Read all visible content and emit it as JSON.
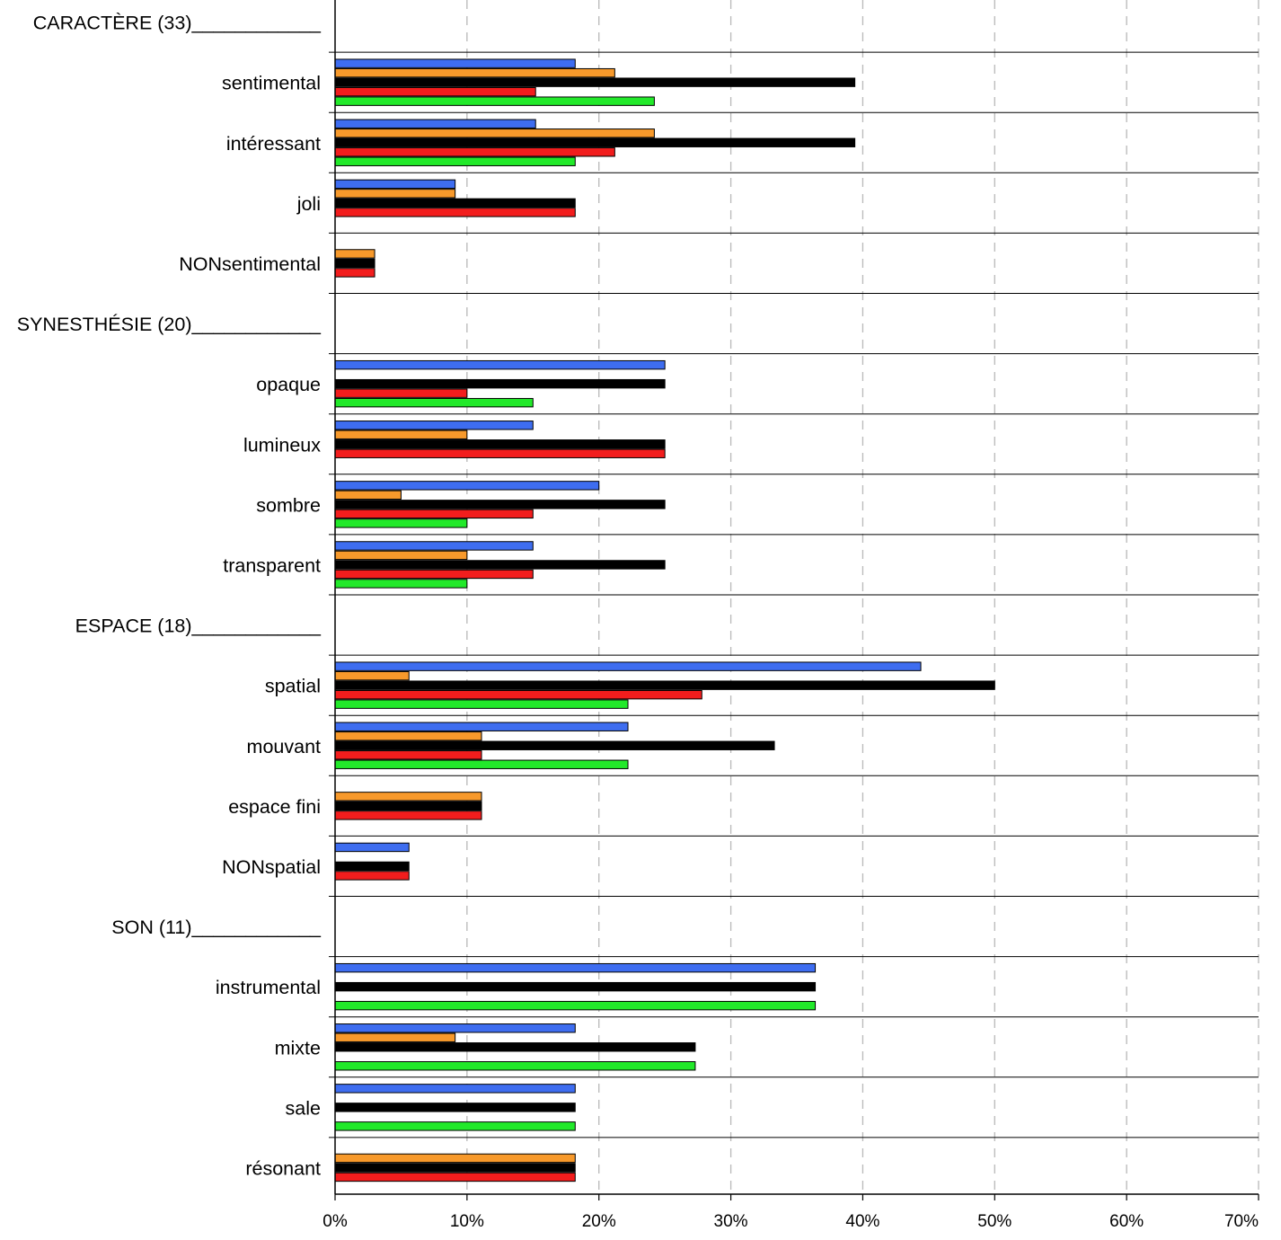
{
  "chart_data": {
    "type": "bar",
    "orientation": "horizontal",
    "title": "",
    "xlabel": "",
    "ylabel": "",
    "xlim": [
      0,
      70
    ],
    "x_unit": "%",
    "x_ticks": [
      0,
      10,
      20,
      30,
      40,
      50,
      60,
      70
    ],
    "x_tick_labels": [
      "0%",
      "10%",
      "20%",
      "30%",
      "40%",
      "50%",
      "60%",
      "70%"
    ],
    "grid": "vertical dashed",
    "legend": "none",
    "series_colors": [
      "#3e6df0",
      "#f7992b",
      "#000000",
      "#f21d1d",
      "#22e92a"
    ],
    "rows": [
      {
        "kind": "header",
        "label": "CARACTÈRE (33)____________"
      },
      {
        "kind": "category",
        "label": "sentimental",
        "values": [
          18.2,
          21.2,
          39.4,
          15.2,
          24.2
        ]
      },
      {
        "kind": "category",
        "label": "intéressant",
        "values": [
          15.2,
          24.2,
          39.4,
          21.2,
          18.2
        ]
      },
      {
        "kind": "category",
        "label": "joli",
        "values": [
          9.1,
          9.1,
          18.2,
          18.2,
          0
        ]
      },
      {
        "kind": "category",
        "label": "NONsentimental",
        "values": [
          0,
          3.0,
          3.0,
          3.0,
          0
        ]
      },
      {
        "kind": "header",
        "label": "SYNESTHÉSIE (20)____________"
      },
      {
        "kind": "category",
        "label": "opaque",
        "values": [
          25,
          0,
          25,
          10,
          15
        ]
      },
      {
        "kind": "category",
        "label": "lumineux",
        "values": [
          15,
          10,
          25,
          25,
          0
        ]
      },
      {
        "kind": "category",
        "label": "sombre",
        "values": [
          20,
          5,
          25,
          15,
          10
        ]
      },
      {
        "kind": "category",
        "label": "transparent",
        "values": [
          15,
          10,
          25,
          15,
          10
        ]
      },
      {
        "kind": "header",
        "label": "ESPACE (18)____________"
      },
      {
        "kind": "category",
        "label": "spatial",
        "values": [
          44.4,
          5.6,
          50.0,
          27.8,
          22.2
        ]
      },
      {
        "kind": "category",
        "label": "mouvant",
        "values": [
          22.2,
          11.1,
          33.3,
          11.1,
          22.2
        ]
      },
      {
        "kind": "category",
        "label": "espace fini",
        "values": [
          0,
          11.1,
          11.1,
          11.1,
          0
        ]
      },
      {
        "kind": "category",
        "label": "NONspatial",
        "values": [
          5.6,
          0,
          5.6,
          5.6,
          0
        ]
      },
      {
        "kind": "header",
        "label": "SON (11)____________"
      },
      {
        "kind": "category",
        "label": "instrumental",
        "values": [
          36.4,
          0,
          36.4,
          0,
          36.4
        ]
      },
      {
        "kind": "category",
        "label": "mixte",
        "values": [
          18.2,
          9.1,
          27.3,
          0,
          27.3
        ]
      },
      {
        "kind": "category",
        "label": "sale",
        "values": [
          18.2,
          0,
          18.2,
          0,
          18.2
        ]
      },
      {
        "kind": "category",
        "label": "résonant",
        "values": [
          0,
          18.2,
          18.2,
          18.2,
          0
        ]
      }
    ]
  }
}
